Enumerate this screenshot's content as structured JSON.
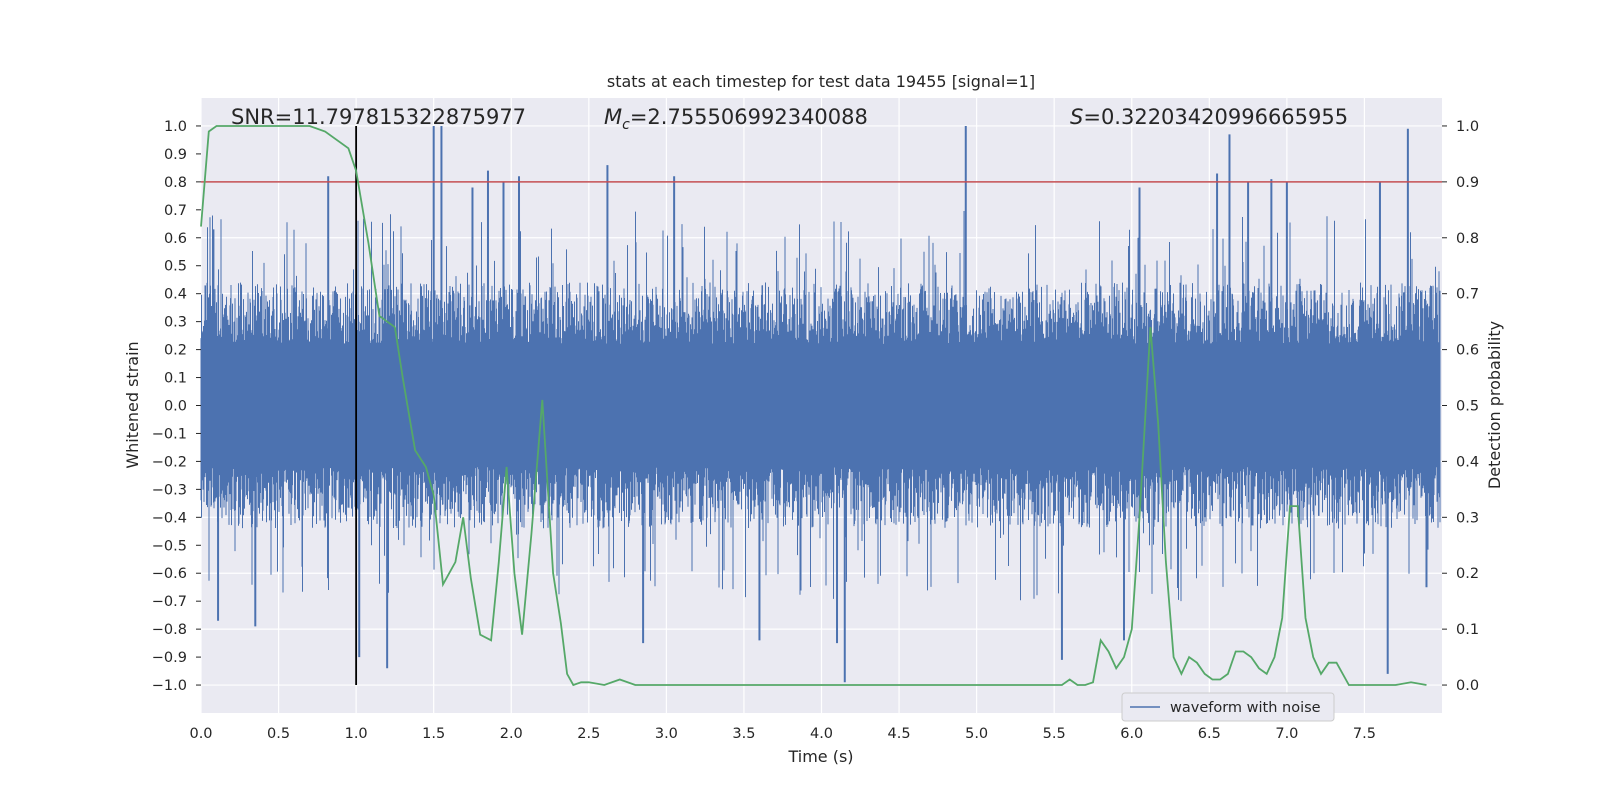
{
  "chart_data": {
    "type": "line",
    "title": "stats at each timestep for test data 19455 [signal=1]",
    "xlabel": "Time (s)",
    "ylabel": "Whitened strain",
    "y2label": "Detection probability",
    "xlim": [
      0.0,
      8.0
    ],
    "ylim": [
      -1.1,
      1.1
    ],
    "y2lim": [
      -0.05,
      1.05
    ],
    "xticks": [
      "0.0",
      "0.5",
      "1.0",
      "1.5",
      "2.0",
      "2.5",
      "3.0",
      "3.5",
      "4.0",
      "4.5",
      "5.0",
      "5.5",
      "6.0",
      "6.5",
      "7.0",
      "7.5"
    ],
    "yticks": [
      "1.0",
      "0.9",
      "0.8",
      "0.7",
      "0.6",
      "0.5",
      "0.4",
      "0.3",
      "0.2",
      "0.1",
      "0.0",
      "−0.1",
      "−0.2",
      "−0.3",
      "−0.4",
      "−0.5",
      "−0.6",
      "−0.7",
      "−0.8",
      "−0.9",
      "−1.0"
    ],
    "y2ticks": [
      "1.0",
      "0.9",
      "0.8",
      "0.7",
      "0.6",
      "0.5",
      "0.4",
      "0.3",
      "0.2",
      "0.1",
      "0.0"
    ],
    "grid": true,
    "legend_position": "lower-right",
    "annotations": {
      "snr": "SNR=11.797815322875977",
      "mc_prefix": "M",
      "mc_sub": "c",
      "mc_value": "=2.755506992340088",
      "s_prefix": "S",
      "s_value": "=0.32203420996665955"
    },
    "threshold_line": {
      "y2": 0.9,
      "color": "#c44e52"
    },
    "vertical_line": {
      "x": 1.0,
      "color": "#000000"
    },
    "series": [
      {
        "name": "waveform with noise",
        "color": "#4c72b0",
        "axis": "left",
        "kind": "noise-envelope",
        "band_low": -0.4,
        "band_high": 0.4,
        "peaks": [
          {
            "x": 0.08,
            "y": 0.63
          },
          {
            "x": 0.11,
            "y": -0.77
          },
          {
            "x": 0.35,
            "y": -0.79
          },
          {
            "x": 0.82,
            "y": 0.82
          },
          {
            "x": 1.02,
            "y": -0.9
          },
          {
            "x": 1.2,
            "y": -0.94
          },
          {
            "x": 1.5,
            "y": 1.0
          },
          {
            "x": 1.55,
            "y": 1.0
          },
          {
            "x": 1.75,
            "y": 0.78
          },
          {
            "x": 1.85,
            "y": 0.84
          },
          {
            "x": 1.95,
            "y": 0.8
          },
          {
            "x": 2.05,
            "y": 0.82
          },
          {
            "x": 2.62,
            "y": 0.86
          },
          {
            "x": 2.85,
            "y": -0.85
          },
          {
            "x": 3.05,
            "y": 0.82
          },
          {
            "x": 3.6,
            "y": -0.84
          },
          {
            "x": 4.1,
            "y": -0.85
          },
          {
            "x": 4.15,
            "y": -0.99
          },
          {
            "x": 4.93,
            "y": 1.0
          },
          {
            "x": 5.55,
            "y": -0.91
          },
          {
            "x": 5.95,
            "y": -0.84
          },
          {
            "x": 6.05,
            "y": 0.78
          },
          {
            "x": 6.55,
            "y": 0.83
          },
          {
            "x": 6.63,
            "y": 0.97
          },
          {
            "x": 6.75,
            "y": 0.8
          },
          {
            "x": 6.9,
            "y": 0.81
          },
          {
            "x": 7.0,
            "y": 0.8
          },
          {
            "x": 7.6,
            "y": 0.8
          },
          {
            "x": 7.65,
            "y": -0.96
          },
          {
            "x": 7.78,
            "y": 0.99
          },
          {
            "x": 7.9,
            "y": -0.65
          }
        ]
      },
      {
        "name": "",
        "color": "#55a868",
        "axis": "right",
        "kind": "line",
        "x": [
          0.0,
          0.05,
          0.1,
          0.2,
          0.3,
          0.5,
          0.7,
          0.8,
          0.95,
          1.0,
          1.08,
          1.15,
          1.25,
          1.3,
          1.38,
          1.45,
          1.5,
          1.56,
          1.64,
          1.69,
          1.74,
          1.8,
          1.87,
          1.92,
          1.97,
          2.02,
          2.07,
          2.13,
          2.2,
          2.27,
          2.32,
          2.36,
          2.4,
          2.45,
          2.5,
          2.6,
          2.7,
          2.8,
          2.9,
          3.0,
          3.1,
          3.2,
          3.3,
          3.4,
          3.5,
          3.6,
          3.7,
          3.8,
          3.9,
          4.0,
          4.1,
          4.2,
          4.3,
          4.4,
          4.5,
          4.6,
          4.7,
          4.8,
          4.9,
          5.0,
          5.1,
          5.2,
          5.3,
          5.4,
          5.5,
          5.55,
          5.6,
          5.65,
          5.7,
          5.75,
          5.8,
          5.85,
          5.9,
          5.95,
          6.0,
          6.05,
          6.12,
          6.17,
          6.22,
          6.27,
          6.32,
          6.37,
          6.42,
          6.47,
          6.52,
          6.57,
          6.62,
          6.67,
          6.72,
          6.77,
          6.82,
          6.87,
          6.92,
          6.97,
          7.02,
          7.07,
          7.12,
          7.17,
          7.22,
          7.27,
          7.32,
          7.4,
          7.5,
          7.6,
          7.7,
          7.8,
          7.9
        ],
        "y": [
          0.82,
          0.99,
          1.0,
          1.0,
          1.0,
          1.0,
          1.0,
          0.99,
          0.96,
          0.92,
          0.79,
          0.66,
          0.64,
          0.55,
          0.42,
          0.39,
          0.34,
          0.18,
          0.22,
          0.3,
          0.19,
          0.09,
          0.08,
          0.22,
          0.39,
          0.2,
          0.09,
          0.27,
          0.51,
          0.2,
          0.11,
          0.02,
          0.0,
          0.005,
          0.005,
          0.0,
          0.01,
          0.0,
          0.0,
          0.0,
          0.0,
          0.0,
          0.0,
          0.0,
          0.0,
          0.0,
          0.0,
          0.0,
          0.0,
          0.0,
          0.0,
          0.0,
          0.0,
          0.0,
          0.0,
          0.0,
          0.0,
          0.0,
          0.0,
          0.0,
          0.0,
          0.0,
          0.0,
          0.0,
          0.0,
          0.0,
          0.01,
          0.0,
          0.0,
          0.005,
          0.08,
          0.06,
          0.03,
          0.05,
          0.1,
          0.3,
          0.64,
          0.47,
          0.22,
          0.05,
          0.02,
          0.05,
          0.04,
          0.02,
          0.01,
          0.01,
          0.02,
          0.06,
          0.06,
          0.05,
          0.03,
          0.02,
          0.05,
          0.12,
          0.32,
          0.32,
          0.12,
          0.05,
          0.02,
          0.04,
          0.04,
          0.0,
          0.0,
          0.0,
          0.0,
          0.005,
          0.0
        ]
      }
    ]
  }
}
